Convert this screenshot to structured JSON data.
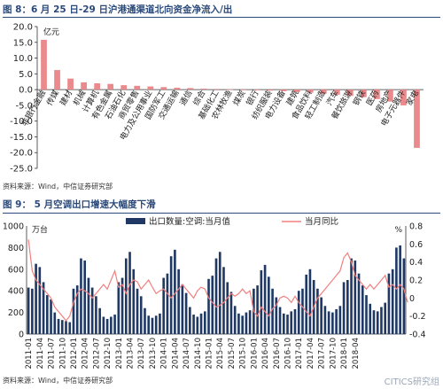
{
  "figure8": {
    "title": "图 8：6 月 25 日-29 日沪港通渠道北向资金净流入/出",
    "source": "资料来源：Wind，中信证券研究部"
  },
  "figure9": {
    "title": "图 9：  5 月空调出口增速大幅度下滑",
    "source": "资料来源：Wind，中信证券研究部"
  },
  "watermark": "CITICS研究组",
  "chart_data": [
    {
      "type": "bar",
      "ylabel": "亿元",
      "ylim": [
        -25,
        20
      ],
      "yticks": [
        20,
        15,
        10,
        5,
        0,
        -5,
        -10,
        -15,
        -20,
        -25
      ],
      "categories": [
        "非银行金融",
        "传媒",
        "建材",
        "机械",
        "计算机",
        "有色金属",
        "石油石化",
        "商贸零售",
        "电力及公用事业",
        "国防军工",
        "交通运输",
        "通信",
        "综合",
        "基础化工",
        "农林牧渔",
        "煤炭",
        "银行",
        "纺织服装",
        "电力设备",
        "建筑",
        "食品饮料",
        "轻工制造",
        "汽车",
        "餐饮旅游",
        "钢铁",
        "医药",
        "房地产",
        "电子元器件",
        "家电"
      ],
      "values": [
        15.8,
        6.2,
        3.5,
        2.3,
        2.0,
        1.8,
        1.4,
        1.2,
        1.0,
        0.8,
        0.6,
        0.5,
        0.3,
        0.2,
        0.1,
        0.0,
        -0.2,
        -0.3,
        -0.5,
        -0.8,
        -1.0,
        -1.3,
        -1.6,
        -2.0,
        -2.4,
        -3.0,
        -3.8,
        -5.0,
        -18.5
      ],
      "color": "#ea8a8c",
      "grid": false
    },
    {
      "type": "bar+line",
      "ylabel_left": "万台",
      "ylabel_right": "%",
      "ylim_left": [
        0,
        1000
      ],
      "ylim_right": [
        -0.4,
        0.8
      ],
      "yticks_left": [
        0,
        200,
        400,
        600,
        800,
        1000
      ],
      "yticks_right": [
        "-0.4",
        "-0.2",
        "0",
        "0.2",
        "0.4",
        "0.6",
        "0.8"
      ],
      "x_tick_labels": [
        "2011-01",
        "2011-04",
        "2011-07",
        "2011-10",
        "2012-01",
        "2012-04",
        "2012-07",
        "2012-10",
        "2013-01",
        "2013-04",
        "2013-07",
        "2013-10",
        "2014-01",
        "2014-04",
        "2014-07",
        "2014-10",
        "2015-01",
        "2015-04",
        "2015-07",
        "2015-10",
        "2016-01",
        "2016-04",
        "2016-07",
        "2016-10",
        "2017-01",
        "2017-04",
        "2017-07",
        "2017-10",
        "2018-01",
        "2018-04"
      ],
      "legend_placement": "top",
      "series": [
        {
          "name": "出口数量:空调:当月值",
          "axis": "left",
          "color": "#1f3864",
          "values": [
            430,
            420,
            650,
            620,
            480,
            360,
            320,
            200,
            140,
            130,
            120,
            110,
            420,
            450,
            700,
            680,
            520,
            430,
            350,
            240,
            160,
            140,
            160,
            180,
            480,
            520,
            700,
            760,
            600,
            420,
            350,
            240,
            170,
            150,
            170,
            190,
            520,
            560,
            720,
            780,
            600,
            460,
            380,
            250,
            180,
            160,
            190,
            210,
            510,
            540,
            700,
            760,
            620,
            480,
            390,
            260,
            190,
            170,
            200,
            220,
            420,
            450,
            590,
            640,
            530,
            420,
            340,
            250,
            190,
            180,
            210,
            230,
            400,
            420,
            550,
            600,
            500,
            420,
            340,
            260,
            210,
            200,
            230,
            260,
            480,
            500,
            700,
            680,
            560,
            450,
            360,
            280,
            220,
            210,
            250,
            290,
            560,
            600,
            800,
            820,
            700
          ]
        },
        {
          "name": "当月同比",
          "axis": "right",
          "color": "#f08080",
          "values": [
            0.65,
            0.3,
            0.2,
            0.15,
            0.1,
            0.05,
            0.0,
            -0.1,
            -0.15,
            -0.2,
            -0.25,
            -0.2,
            -0.05,
            0.05,
            0.1,
            0.08,
            0.05,
            0.0,
            0.05,
            0.1,
            0.15,
            0.1,
            0.2,
            0.3,
            0.12,
            0.15,
            0.05,
            0.15,
            0.2,
            0.18,
            0.1,
            0.15,
            0.2,
            0.12,
            0.05,
            0.08,
            0.1,
            0.05,
            0.0,
            0.05,
            0.1,
            0.15,
            0.1,
            0.05,
            0.0,
            0.08,
            0.12,
            0.1,
            0.0,
            -0.05,
            -0.1,
            -0.08,
            -0.05,
            0.0,
            0.05,
            0.02,
            0.05,
            0.1,
            0.05,
            0.08,
            -0.15,
            -0.2,
            -0.1,
            -0.15,
            -0.2,
            -0.12,
            -0.08,
            0.0,
            0.02,
            0.0,
            -0.05,
            0.02,
            -0.05,
            -0.1,
            -0.15,
            -0.2,
            -0.1,
            0.0,
            0.05,
            0.1,
            0.15,
            0.2,
            0.25,
            0.3,
            0.45,
            0.5,
            0.4,
            0.25,
            0.2,
            0.15,
            0.1,
            0.15,
            0.1,
            0.15,
            0.2,
            0.25,
            0.12,
            0.15,
            0.1,
            0.15,
            0.1,
            -0.05
          ]
        }
      ]
    }
  ]
}
